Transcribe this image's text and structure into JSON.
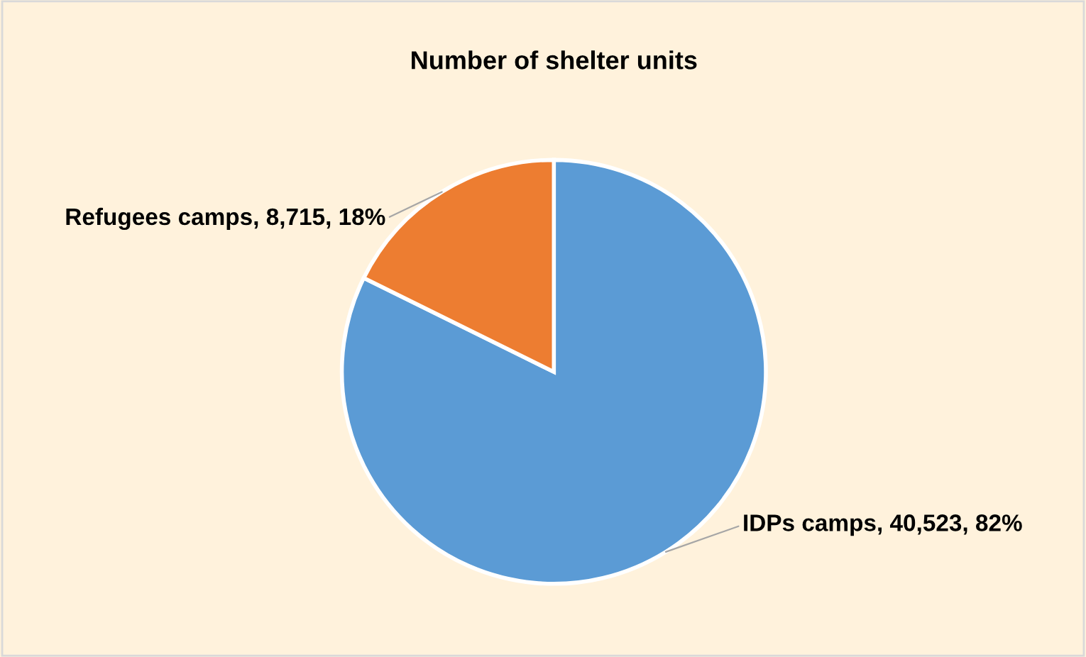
{
  "chart_data": {
    "type": "pie",
    "title": "Number of shelter units",
    "categories": [
      "IDPs camps",
      "Refugees camps"
    ],
    "values": [
      40523,
      8715
    ],
    "value_labels": [
      "40,523, 82%",
      "8,715, 18%"
    ],
    "colors": [
      "#5b9bd5",
      "#ed7d31"
    ],
    "legend": false
  }
}
